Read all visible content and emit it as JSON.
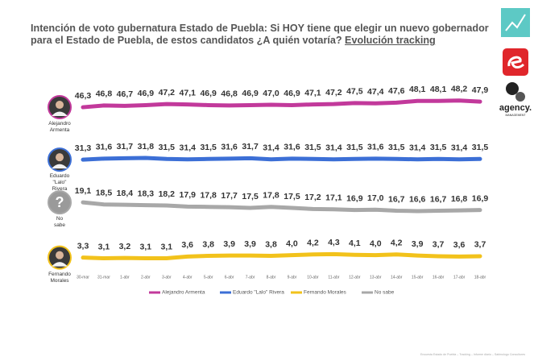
{
  "chart_data": {
    "type": "line",
    "title": "Intención de voto gubernatura Estado de Puebla: Si HOY tiene que elegir un nuevo gobernador para el Estado de Puebla, de estos candidatos ¿A quién votaría?",
    "title_link": "Evolución tracking",
    "categories": [
      "30-mar",
      "31-mar",
      "1-abr",
      "2-abr",
      "3-abr",
      "4-abr",
      "5-abr",
      "6-abr",
      "7-abr",
      "8-abr",
      "9-abr",
      "10-abr",
      "11-abr",
      "12-abr",
      "13-abr",
      "14-abr",
      "15-abr",
      "16-abr",
      "17-abr",
      "18-abr"
    ],
    "ylim": [
      0,
      50
    ],
    "series": [
      {
        "name": "Alejandro Armenta",
        "color": "#c2399b",
        "values": [
          46.3,
          46.8,
          46.7,
          46.9,
          47.2,
          47.1,
          46.9,
          46.8,
          46.9,
          47.0,
          46.9,
          47.1,
          47.2,
          47.5,
          47.4,
          47.6,
          48.1,
          48.1,
          48.2,
          47.9
        ],
        "value_labels": [
          "46,3",
          "46,8",
          "46,7",
          "46,9",
          "47,2",
          "47,1",
          "46,9",
          "46,8",
          "46,9",
          "47,0",
          "46,9",
          "47,1",
          "47,2",
          "47,5",
          "47,4",
          "47,6",
          "48,1",
          "48,1",
          "48,2",
          "47,9"
        ]
      },
      {
        "name": "Eduardo \"Lalo\" Rivera",
        "color": "#3c6fd6",
        "values": [
          31.3,
          31.6,
          31.7,
          31.8,
          31.5,
          31.4,
          31.5,
          31.6,
          31.7,
          31.4,
          31.6,
          31.5,
          31.4,
          31.5,
          31.6,
          31.5,
          31.4,
          31.5,
          31.4,
          31.5
        ],
        "value_labels": [
          "31,3",
          "31,6",
          "31,7",
          "31,8",
          "31,5",
          "31,4",
          "31,5",
          "31,6",
          "31,7",
          "31,4",
          "31,6",
          "31,5",
          "31,4",
          "31,5",
          "31,6",
          "31,5",
          "31,4",
          "31,5",
          "31,4",
          "31,5"
        ]
      },
      {
        "name": "Fernando Morales",
        "color": "#f2c21b",
        "values": [
          3.3,
          3.1,
          3.2,
          3.1,
          3.1,
          3.6,
          3.8,
          3.9,
          3.9,
          3.8,
          4.0,
          4.2,
          4.3,
          4.1,
          4.0,
          4.2,
          3.9,
          3.7,
          3.6,
          3.7
        ],
        "value_labels": [
          "3,3",
          "3,1",
          "3,2",
          "3,1",
          "3,1",
          "3,6",
          "3,8",
          "3,9",
          "3,9",
          "3,8",
          "4,0",
          "4,2",
          "4,3",
          "4,1",
          "4,0",
          "4,2",
          "3,9",
          "3,7",
          "3,6",
          "3,7"
        ]
      },
      {
        "name": "No sabe",
        "color": "#a8a8a8",
        "values": [
          19.1,
          18.5,
          18.4,
          18.3,
          18.2,
          17.9,
          17.8,
          17.7,
          17.5,
          17.8,
          17.5,
          17.2,
          17.1,
          16.9,
          17.0,
          16.7,
          16.6,
          16.7,
          16.8,
          16.9
        ],
        "value_labels": [
          "19,1",
          "18,5",
          "18,4",
          "18,3",
          "18,2",
          "17,9",
          "17,8",
          "17,7",
          "17,5",
          "17,8",
          "17,5",
          "17,2",
          "17,1",
          "16,9",
          "17,0",
          "16,7",
          "16,6",
          "16,7",
          "16,8",
          "16,9"
        ]
      }
    ],
    "logo_text": "agency.",
    "logo_subtext": "MANAGEMENT",
    "footer": "Encuesta Estado de Puebla – Tracking – Informe diario – Sabinologo Consultores"
  }
}
